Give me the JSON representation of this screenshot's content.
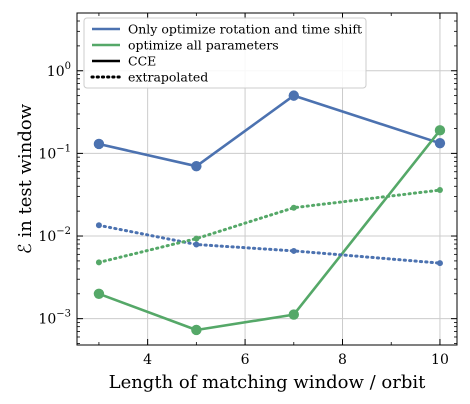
{
  "chart_data": {
    "type": "line",
    "xlabel": "Length of matching window / orbit",
    "ylabel": "ℰ in test window",
    "yscale": "log",
    "xlim": [
      2.55,
      10.35
    ],
    "ylim": [
      0.00048,
      5.0
    ],
    "xticks": [
      4,
      6,
      8,
      10
    ],
    "xtick_labels": [
      "4",
      "6",
      "8",
      "10"
    ],
    "yticks": [
      0.001,
      0.01,
      0.1,
      1
    ],
    "ytick_labels": [
      {
        "base": "10",
        "exp": "−3"
      },
      {
        "base": "10",
        "exp": "−2"
      },
      {
        "base": "10",
        "exp": "−1"
      },
      {
        "base": "10",
        "exp": "0"
      }
    ],
    "grid": true,
    "legend_position": "top-left",
    "legend": [
      {
        "label": "Only optimize rotation and time shift",
        "color": "#4c72b0",
        "style": "solid"
      },
      {
        "label": "optimize all parameters",
        "color": "#55a868",
        "style": "solid"
      },
      {
        "label": "CCE",
        "color": "#000000",
        "style": "solid"
      },
      {
        "label": "extrapolated",
        "color": "#000000",
        "style": "dotted"
      }
    ],
    "x": [
      3,
      5,
      7,
      10
    ],
    "series": [
      {
        "name": "Only optimize rotation and time shift",
        "method": "CCE",
        "color": "#4c72b0",
        "style": "solid",
        "values": [
          0.13,
          0.07,
          0.5,
          0.133
        ]
      },
      {
        "name": "optimize all parameters",
        "method": "CCE",
        "color": "#55a868",
        "style": "solid",
        "values": [
          0.002,
          0.00073,
          0.00112,
          0.19
        ]
      },
      {
        "name": "Only optimize rotation and time shift",
        "method": "extrapolated",
        "color": "#4c72b0",
        "style": "dotted",
        "values": [
          0.0135,
          0.0079,
          0.0066,
          0.0047
        ]
      },
      {
        "name": "optimize all parameters",
        "method": "extrapolated",
        "color": "#55a868",
        "style": "dotted",
        "values": [
          0.0048,
          0.0093,
          0.022,
          0.036
        ]
      }
    ]
  }
}
